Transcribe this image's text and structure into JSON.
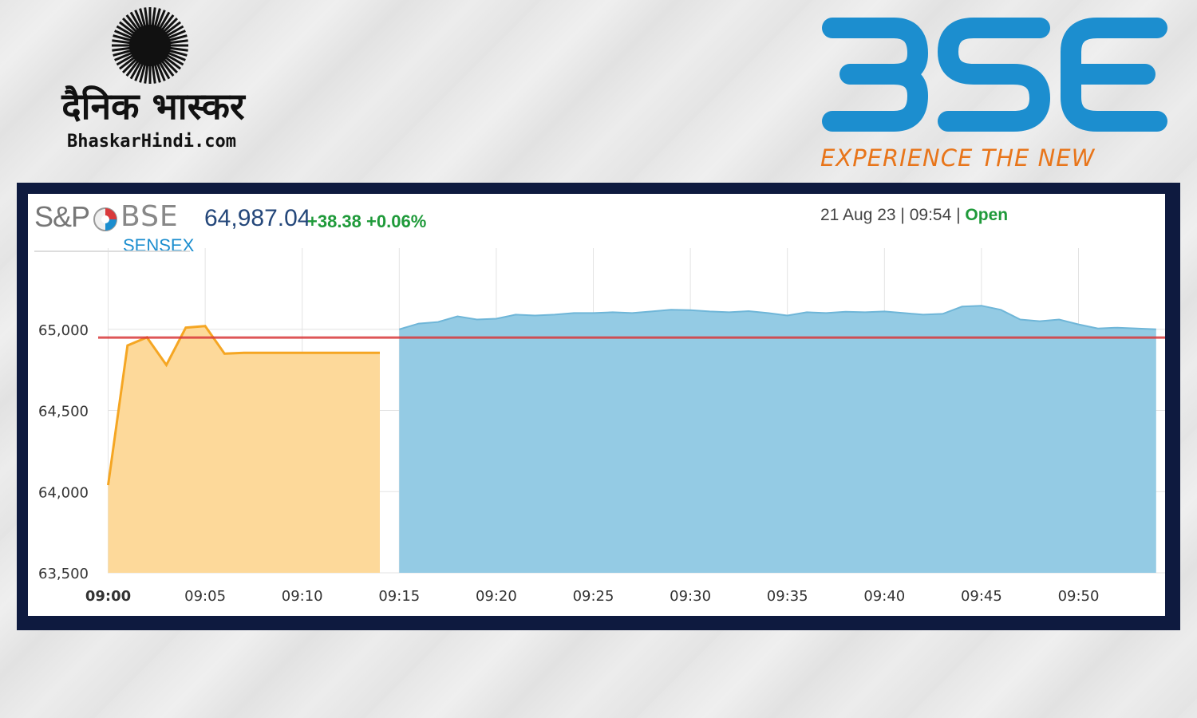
{
  "branding": {
    "publisher_hindi": "दैनिक भास्कर",
    "publisher_site": "BhaskarHindi.com",
    "exchange_logo_text": "BSE",
    "exchange_tagline": "EXPERIENCE THE NEW"
  },
  "index": {
    "logo_prefix": "S&P",
    "logo_exchange": "BSE",
    "name": "SENSEX",
    "value": "64,987.04",
    "change_points": "+38.38",
    "change_percent": "+0.06%",
    "date_time": "21 Aug 23 | 09:54 |",
    "status": "Open"
  },
  "colors": {
    "pre_open_fill": "#fdd99a",
    "pre_open_line": "#f5a623",
    "session_fill": "#94cbe4",
    "session_line": "#6fb6d8",
    "previous_close_line": "#d9393b",
    "frame": "#0e1a3f"
  },
  "chart_data": {
    "type": "area",
    "xlabel": "",
    "ylabel": "",
    "ylim": [
      63500,
      65500
    ],
    "y_ticks": [
      "65,000",
      "64,500",
      "64,000",
      "63,500"
    ],
    "y_tick_values": [
      65000,
      64500,
      64000,
      63500
    ],
    "x_ticks": [
      "09:00",
      "09:05",
      "09:10",
      "09:15",
      "09:20",
      "09:25",
      "09:30",
      "09:35",
      "09:40",
      "09:45",
      "09:50"
    ],
    "x_tick_minutes": [
      0,
      5,
      10,
      15,
      20,
      25,
      30,
      35,
      40,
      45,
      50
    ],
    "grid": true,
    "reference_line": {
      "value": 64949,
      "color": "#d9393b"
    },
    "series": [
      {
        "minutes": [
          0,
          1,
          2,
          3,
          4,
          5,
          6,
          7,
          8,
          9,
          10,
          11,
          12,
          13,
          14
        ],
        "values": [
          64040,
          64900,
          64950,
          64780,
          65010,
          65020,
          64850,
          64855,
          64855,
          64855,
          64855,
          64855,
          64855,
          64855,
          64855
        ]
      },
      {
        "minutes": [
          15,
          16,
          17,
          18,
          19,
          20,
          21,
          22,
          23,
          24,
          25,
          26,
          27,
          28,
          29,
          30,
          31,
          32,
          33,
          34,
          35,
          36,
          37,
          38,
          39,
          40,
          41,
          42,
          43,
          44,
          45,
          46,
          47,
          48,
          49,
          50,
          51,
          52,
          53,
          54
        ],
        "values": [
          65000,
          65035,
          65045,
          65080,
          65060,
          65065,
          65090,
          65085,
          65090,
          65100,
          65100,
          65105,
          65100,
          65110,
          65120,
          65118,
          65110,
          65105,
          65112,
          65100,
          65085,
          65105,
          65100,
          65108,
          65105,
          65110,
          65100,
          65090,
          65095,
          65140,
          65145,
          65120,
          65060,
          65050,
          65060,
          65030,
          65005,
          65010,
          65005,
          65000
        ]
      }
    ]
  }
}
